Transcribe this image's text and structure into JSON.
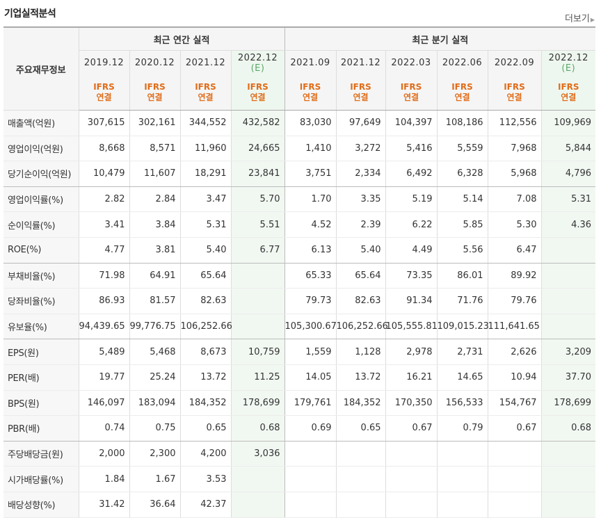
{
  "header": {
    "title": "기업실적분석",
    "more_label": "더보기"
  },
  "table": {
    "row_header_label": "주요재무정보",
    "groups": {
      "annual": "최근 연간 실적",
      "quarterly": "최근 분기 실적"
    },
    "periods": [
      "2019.12",
      "2020.12",
      "2021.12",
      "2022.12",
      "2021.09",
      "2021.12",
      "2022.03",
      "2022.06",
      "2022.09",
      "2022.12"
    ],
    "estimate_mark": "(E)",
    "standard_line1": "IFRS",
    "standard_line2": "연결",
    "rows": [
      {
        "label": "매출액(억원)",
        "values": [
          "307,615",
          "302,161",
          "344,552",
          "432,582",
          "83,030",
          "97,649",
          "104,397",
          "108,186",
          "112,556",
          "109,969"
        ]
      },
      {
        "label": "영업이익(억원)",
        "values": [
          "8,668",
          "8,571",
          "11,960",
          "24,665",
          "1,410",
          "3,272",
          "5,416",
          "5,559",
          "7,968",
          "5,844"
        ]
      },
      {
        "label": "당기순이익(억원)",
        "values": [
          "10,479",
          "11,607",
          "18,291",
          "23,841",
          "3,751",
          "2,334",
          "6,492",
          "6,328",
          "5,968",
          "4,796"
        ]
      },
      {
        "label": "영업이익률(%)",
        "values": [
          "2.82",
          "2.84",
          "3.47",
          "5.70",
          "1.70",
          "3.35",
          "5.19",
          "5.14",
          "7.08",
          "5.31"
        ]
      },
      {
        "label": "순이익률(%)",
        "values": [
          "3.41",
          "3.84",
          "5.31",
          "5.51",
          "4.52",
          "2.39",
          "6.22",
          "5.85",
          "5.30",
          "4.36"
        ]
      },
      {
        "label": "ROE(%)",
        "values": [
          "4.77",
          "3.81",
          "5.40",
          "6.77",
          "6.13",
          "5.40",
          "4.49",
          "5.56",
          "6.47",
          ""
        ]
      },
      {
        "label": "부채비율(%)",
        "values": [
          "71.98",
          "64.91",
          "65.64",
          "",
          "65.33",
          "65.64",
          "73.35",
          "86.01",
          "89.92",
          ""
        ]
      },
      {
        "label": "당좌비율(%)",
        "values": [
          "86.93",
          "81.57",
          "82.63",
          "",
          "79.73",
          "82.63",
          "91.34",
          "71.76",
          "79.76",
          ""
        ]
      },
      {
        "label": "유보율(%)",
        "values": [
          "94,439.65",
          "99,776.75",
          "106,252.66",
          "",
          "105,300.67",
          "106,252.66",
          "105,555.81",
          "109,015.23",
          "111,641.65",
          ""
        ]
      },
      {
        "label": "EPS(원)",
        "values": [
          "5,489",
          "5,468",
          "8,673",
          "10,759",
          "1,559",
          "1,128",
          "2,978",
          "2,731",
          "2,626",
          "3,209"
        ]
      },
      {
        "label": "PER(배)",
        "values": [
          "19.77",
          "25.24",
          "13.72",
          "11.25",
          "14.05",
          "13.72",
          "16.21",
          "14.65",
          "10.94",
          "37.70"
        ]
      },
      {
        "label": "BPS(원)",
        "values": [
          "146,097",
          "183,094",
          "184,352",
          "178,699",
          "179,761",
          "184,352",
          "170,350",
          "156,533",
          "154,767",
          "178,699"
        ]
      },
      {
        "label": "PBR(배)",
        "values": [
          "0.74",
          "0.75",
          "0.65",
          "0.68",
          "0.69",
          "0.65",
          "0.67",
          "0.79",
          "0.67",
          "0.68"
        ]
      },
      {
        "label": "주당배당금(원)",
        "values": [
          "2,000",
          "2,300",
          "4,200",
          "3,036",
          "",
          "",
          "",
          "",
          "",
          ""
        ]
      },
      {
        "label": "시가배당률(%)",
        "values": [
          "1.84",
          "1.67",
          "3.53",
          "",
          "",
          "",
          "",
          "",
          "",
          ""
        ]
      },
      {
        "label": "배당성향(%)",
        "values": [
          "31.42",
          "36.64",
          "42.37",
          "",
          "",
          "",
          "",
          "",
          "",
          ""
        ]
      }
    ]
  }
}
